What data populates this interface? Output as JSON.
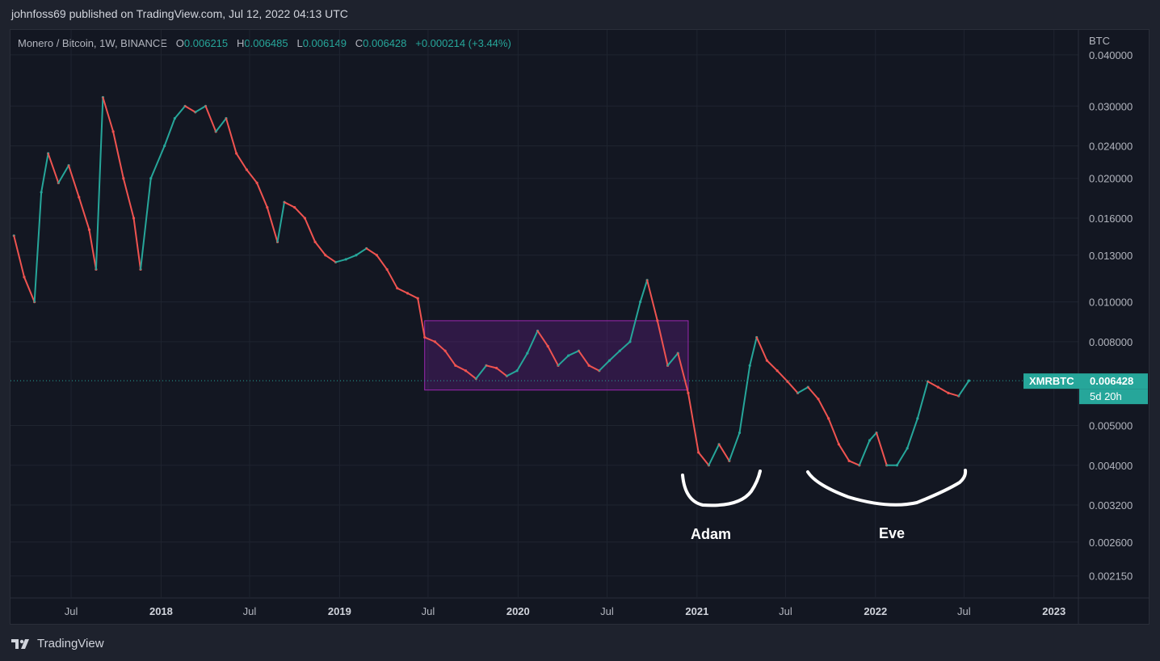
{
  "header": {
    "published": "johnfoss69 published on TradingView.com, Jul 12, 2022 04:13 UTC"
  },
  "legend": {
    "symbol": "Monero / Bitcoin, 1W, BINANCE",
    "o_label": "O",
    "o_value": "0.006215",
    "h_label": "H",
    "h_value": "0.006485",
    "l_label": "L",
    "l_value": "0.006149",
    "c_label": "C",
    "c_value": "0.006428",
    "change": "+0.000214 (+3.44%)"
  },
  "colors": {
    "up": "#26a69a",
    "down": "#ef5350",
    "background": "#131722",
    "rect_fill": "#7b1fa2",
    "rect_stroke": "#9c27b0"
  },
  "price_axis": {
    "currency": "BTC",
    "ticks": [
      "0.040000",
      "0.030000",
      "0.024000",
      "0.020000",
      "0.016000",
      "0.013000",
      "0.010000",
      "0.008000",
      "0.005000",
      "0.004000",
      "0.003200",
      "0.002600",
      "0.002150"
    ],
    "current_symbol": "XMRBTC",
    "current_price": "0.006428",
    "countdown": "5d 20h"
  },
  "time_axis": [
    {
      "label": "Jul",
      "bold": false
    },
    {
      "label": "2018",
      "bold": true
    },
    {
      "label": "Jul",
      "bold": false
    },
    {
      "label": "2019",
      "bold": true
    },
    {
      "label": "Jul",
      "bold": false
    },
    {
      "label": "2020",
      "bold": true
    },
    {
      "label": "Jul",
      "bold": false
    },
    {
      "label": "2021",
      "bold": true
    },
    {
      "label": "Jul",
      "bold": false
    },
    {
      "label": "2022",
      "bold": true
    },
    {
      "label": "Jul",
      "bold": false
    },
    {
      "label": "2023",
      "bold": true
    }
  ],
  "annotations": {
    "left": "Adam",
    "right": "Eve"
  },
  "footer": {
    "brand": "TradingView"
  },
  "chart_data": {
    "type": "candlestick",
    "title": "Monero / Bitcoin, 1W, BINANCE",
    "yscale": "log",
    "ylim": [
      0.0019,
      0.046
    ],
    "xlim": [
      "2017-02-27",
      "2023-02-20"
    ],
    "last_close": 0.006428,
    "series": [
      {
        "name": "XMRBTC",
        "points": [
          [
            "2017-03-06",
            0.0145
          ],
          [
            "2017-03-27",
            0.0115
          ],
          [
            "2017-04-17",
            0.01
          ],
          [
            "2017-05-01",
            0.0185
          ],
          [
            "2017-05-15",
            0.023
          ],
          [
            "2017-06-05",
            0.0195
          ],
          [
            "2017-06-26",
            0.0215
          ],
          [
            "2017-07-17",
            0.018
          ],
          [
            "2017-08-07",
            0.015
          ],
          [
            "2017-08-21",
            0.012
          ],
          [
            "2017-09-04",
            0.0315
          ],
          [
            "2017-09-25",
            0.026
          ],
          [
            "2017-10-16",
            0.02
          ],
          [
            "2017-11-06",
            0.016
          ],
          [
            "2017-11-20",
            0.012
          ],
          [
            "2017-12-11",
            0.02
          ],
          [
            "2018-01-08",
            0.024
          ],
          [
            "2018-01-29",
            0.028
          ],
          [
            "2018-02-19",
            0.03
          ],
          [
            "2018-03-12",
            0.029
          ],
          [
            "2018-04-02",
            0.03
          ],
          [
            "2018-04-23",
            0.026
          ],
          [
            "2018-05-14",
            0.028
          ],
          [
            "2018-06-04",
            0.023
          ],
          [
            "2018-06-25",
            0.021
          ],
          [
            "2018-07-16",
            0.0195
          ],
          [
            "2018-08-06",
            0.017
          ],
          [
            "2018-08-27",
            0.014
          ],
          [
            "2018-09-10",
            0.0175
          ],
          [
            "2018-10-01",
            0.017
          ],
          [
            "2018-10-22",
            0.016
          ],
          [
            "2018-11-12",
            0.014
          ],
          [
            "2018-12-03",
            0.013
          ],
          [
            "2018-12-24",
            0.0125
          ],
          [
            "2019-01-14",
            0.0127
          ],
          [
            "2019-02-04",
            0.013
          ],
          [
            "2019-02-25",
            0.0135
          ],
          [
            "2019-03-18",
            0.013
          ],
          [
            "2019-04-08",
            0.012
          ],
          [
            "2019-04-29",
            0.0108
          ],
          [
            "2019-05-20",
            0.0105
          ],
          [
            "2019-06-10",
            0.0102
          ],
          [
            "2019-06-24",
            0.0082
          ],
          [
            "2019-07-15",
            0.008
          ],
          [
            "2019-08-05",
            0.0076
          ],
          [
            "2019-08-26",
            0.007
          ],
          [
            "2019-09-16",
            0.0068
          ],
          [
            "2019-10-07",
            0.0065
          ],
          [
            "2019-10-28",
            0.007
          ],
          [
            "2019-11-18",
            0.0069
          ],
          [
            "2019-12-09",
            0.0066
          ],
          [
            "2019-12-30",
            0.0068
          ],
          [
            "2020-01-20",
            0.0075
          ],
          [
            "2020-02-10",
            0.0085
          ],
          [
            "2020-03-02",
            0.0078
          ],
          [
            "2020-03-23",
            0.007
          ],
          [
            "2020-04-13",
            0.0074
          ],
          [
            "2020-05-04",
            0.0076
          ],
          [
            "2020-05-25",
            0.007
          ],
          [
            "2020-06-15",
            0.0068
          ],
          [
            "2020-07-06",
            0.0072
          ],
          [
            "2020-07-27",
            0.0076
          ],
          [
            "2020-08-17",
            0.008
          ],
          [
            "2020-09-07",
            0.01
          ],
          [
            "2020-09-21",
            0.0113
          ],
          [
            "2020-10-12",
            0.009
          ],
          [
            "2020-11-02",
            0.007
          ],
          [
            "2020-11-23",
            0.0075
          ],
          [
            "2020-12-14",
            0.006
          ],
          [
            "2021-01-04",
            0.0043
          ],
          [
            "2021-01-25",
            0.004
          ],
          [
            "2021-02-15",
            0.0045
          ],
          [
            "2021-03-08",
            0.0041
          ],
          [
            "2021-03-29",
            0.0048
          ],
          [
            "2021-04-19",
            0.007
          ],
          [
            "2021-05-03",
            0.0082
          ],
          [
            "2021-05-24",
            0.0072
          ],
          [
            "2021-06-14",
            0.0068
          ],
          [
            "2021-07-05",
            0.0064
          ],
          [
            "2021-07-26",
            0.006
          ],
          [
            "2021-08-16",
            0.0062
          ],
          [
            "2021-09-06",
            0.0058
          ],
          [
            "2021-09-27",
            0.0052
          ],
          [
            "2021-10-18",
            0.0045
          ],
          [
            "2021-11-08",
            0.0041
          ],
          [
            "2021-11-29",
            0.004
          ],
          [
            "2021-12-20",
            0.0046
          ],
          [
            "2022-01-03",
            0.0048
          ],
          [
            "2022-01-24",
            0.004
          ],
          [
            "2022-02-14",
            0.004
          ],
          [
            "2022-03-07",
            0.0044
          ],
          [
            "2022-03-28",
            0.0052
          ],
          [
            "2022-04-18",
            0.0064
          ],
          [
            "2022-05-09",
            0.0062
          ],
          [
            "2022-05-30",
            0.006
          ],
          [
            "2022-06-20",
            0.0059
          ],
          [
            "2022-07-11",
            0.006428
          ]
        ]
      }
    ],
    "box": {
      "x_start": "2019-06-24",
      "x_end": "2020-12-14",
      "y_low": 0.0061,
      "y_high": 0.009
    }
  }
}
